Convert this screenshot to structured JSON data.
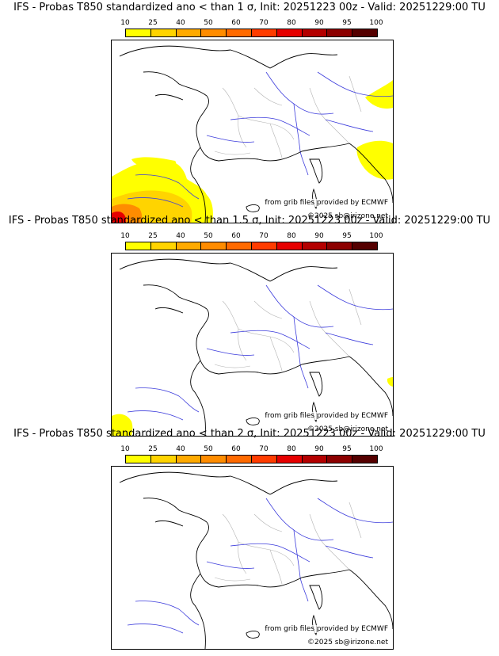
{
  "panels": [
    {
      "title": "IFS - Probas T850  standardized ano < than 1 σ, Init: 20251223 00z - Valid: 20251229:00 TU",
      "credit": "from grib files provided by ECMWF",
      "copyright": "©2025 sb@irizone.net",
      "coverage": "high"
    },
    {
      "title": "IFS - Probas T850  standardized ano < than 1.5 σ, Init: 20251223 00z - Valid: 20251229:00 TU",
      "credit": "from grib files provided by ECMWF",
      "copyright": "©2025 sb@irizone.net",
      "coverage": "low"
    },
    {
      "title": "IFS - Probas T850  standardized ano < than 2 σ, Init: 20251223 00z - Valid: 20251229:00 TU",
      "credit": "from grib files provided by ECMWF",
      "copyright": "©2025 sb@irizone.net",
      "coverage": "none"
    }
  ],
  "legend": {
    "ticks": [
      "10",
      "25",
      "40",
      "50",
      "60",
      "70",
      "80",
      "90",
      "95",
      "100"
    ],
    "colors": [
      "#ffff00",
      "#ffd400",
      "#ffaa00",
      "#ff8c00",
      "#ff6a00",
      "#ff3c00",
      "#e60000",
      "#b40000",
      "#8c0000",
      "#550000"
    ]
  },
  "map_colors": {
    "coast": "#000000",
    "rivers": "#3c3cdc",
    "borders": "#b4b4b4"
  }
}
